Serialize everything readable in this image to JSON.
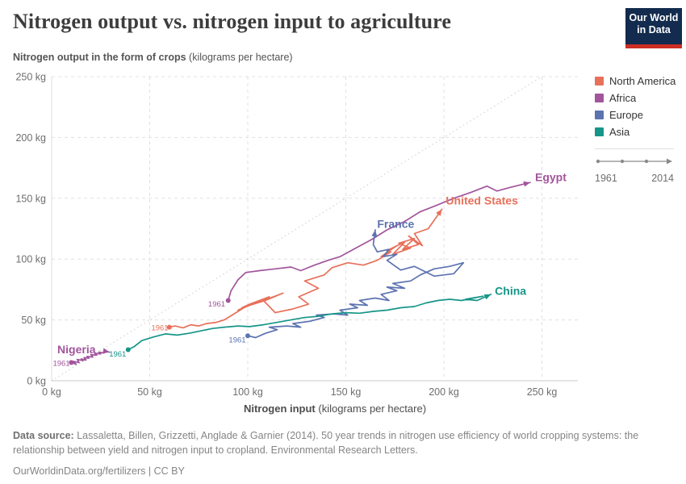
{
  "header": {
    "title": "Nitrogen output vs. nitrogen input to agriculture",
    "logo_line1": "Our World",
    "logo_line2": "in Data",
    "logo_bg": "#122B4E",
    "logo_accent": "#CD2D23"
  },
  "subtitle": {
    "bold": "Nitrogen output in the form of crops",
    "rest": " (kilograms per hectare)"
  },
  "legend": {
    "items": [
      {
        "label": "North America",
        "color": "#E8705A"
      },
      {
        "label": "Africa",
        "color": "#A2559C"
      },
      {
        "label": "Europe",
        "color": "#5C73B0"
      },
      {
        "label": "Asia",
        "color": "#169588"
      }
    ],
    "timeline": {
      "start_year": "1961",
      "end_year": "2014"
    }
  },
  "chart_data": {
    "type": "line",
    "variant": "connected-scatter",
    "title": "Nitrogen output vs. nitrogen input to agriculture",
    "xlabel_bold": "Nitrogen input",
    "xlabel_rest": " (kilograms per hectare)",
    "ylabel": "Nitrogen output in the form of crops (kilograms per hectare)",
    "xlim": [
      0,
      268
    ],
    "ylim": [
      0,
      250
    ],
    "grid": true,
    "x_ticks": [
      {
        "v": 0,
        "label": "0 kg"
      },
      {
        "v": 50,
        "label": "50 kg"
      },
      {
        "v": 100,
        "label": "100 kg"
      },
      {
        "v": 150,
        "label": "150 kg"
      },
      {
        "v": 200,
        "label": "200 kg"
      },
      {
        "v": 250,
        "label": "250 kg"
      }
    ],
    "y_ticks": [
      {
        "v": 0,
        "label": "0 kg"
      },
      {
        "v": 50,
        "label": "50 kg"
      },
      {
        "v": 100,
        "label": "100 kg"
      },
      {
        "v": 150,
        "label": "150 kg"
      },
      {
        "v": 200,
        "label": "200 kg"
      },
      {
        "v": 250,
        "label": "250 kg"
      }
    ],
    "diagonal_reference_line": {
      "from": [
        0,
        0
      ],
      "to": [
        250,
        250
      ]
    },
    "time_range": {
      "start": "1961",
      "end": "2014"
    },
    "series": [
      {
        "name": "Nigeria",
        "region": "Africa",
        "color": "#A2559C",
        "start_year": "1961",
        "end_year": "2014",
        "label_pos": [
          2.9,
          22.5
        ],
        "label_anchor": "start",
        "year_label_pos": [
          9.3,
          12.3
        ],
        "year_label_anchor": "end",
        "points": [
          [
            10,
            15
          ],
          [
            12.5,
            13.5
          ],
          [
            11,
            16
          ],
          [
            14,
            15
          ],
          [
            13,
            17.5
          ],
          [
            16,
            16.5
          ],
          [
            15,
            18
          ],
          [
            17.5,
            17
          ],
          [
            16.5,
            19
          ],
          [
            19,
            18.5
          ],
          [
            18,
            20
          ],
          [
            21,
            19.5
          ],
          [
            20,
            21.5
          ],
          [
            23,
            21
          ],
          [
            22,
            22.5
          ],
          [
            25,
            22
          ],
          [
            24,
            23.5
          ],
          [
            26.5,
            22.8
          ],
          [
            28,
            24
          ],
          [
            29.5,
            23.5
          ]
        ]
      },
      {
        "name": "Egypt",
        "region": "Africa",
        "color": "#A2559C",
        "start_year": "1961",
        "end_year": "2014",
        "label_pos": [
          246.5,
          164
        ],
        "label_anchor": "start",
        "year_label_pos": [
          88.5,
          61
        ],
        "year_label_anchor": "end",
        "points": [
          [
            90,
            66
          ],
          [
            91.5,
            74
          ],
          [
            95,
            83
          ],
          [
            99,
            89
          ],
          [
            106,
            90.5
          ],
          [
            114,
            92
          ],
          [
            122,
            93.5
          ],
          [
            127,
            90.5
          ],
          [
            134,
            95
          ],
          [
            141,
            99
          ],
          [
            147,
            102
          ],
          [
            155,
            109
          ],
          [
            163,
            116
          ],
          [
            171,
            124
          ],
          [
            180,
            131
          ],
          [
            188,
            139
          ],
          [
            196,
            144
          ],
          [
            205,
            150
          ],
          [
            214,
            155
          ],
          [
            222,
            160
          ],
          [
            227,
            156
          ],
          [
            234,
            159
          ],
          [
            244,
            163
          ]
        ]
      },
      {
        "name": "United States",
        "region": "North America",
        "color": "#E8705A",
        "start_year": "1961",
        "end_year": "2014",
        "label_pos": [
          201,
          145
        ],
        "label_anchor": "start",
        "year_label_pos": [
          59.5,
          41.5
        ],
        "year_label_anchor": "end",
        "points": [
          [
            60,
            44
          ],
          [
            63,
            45
          ],
          [
            67,
            43.5
          ],
          [
            71,
            46
          ],
          [
            75,
            45
          ],
          [
            79,
            47
          ],
          [
            84,
            48
          ],
          [
            88,
            50
          ],
          [
            93,
            55
          ],
          [
            99,
            61
          ],
          [
            95,
            58
          ],
          [
            104,
            64
          ],
          [
            111,
            69
          ],
          [
            101,
            63
          ],
          [
            97,
            60
          ],
          [
            109,
            66
          ],
          [
            118,
            72
          ],
          [
            108,
            66
          ],
          [
            114,
            56
          ],
          [
            123,
            59
          ],
          [
            131,
            63
          ],
          [
            126,
            69
          ],
          [
            136,
            76
          ],
          [
            129,
            82
          ],
          [
            139,
            87
          ],
          [
            143,
            93
          ],
          [
            151,
            97
          ],
          [
            159,
            95
          ],
          [
            166,
            99
          ],
          [
            173,
            106
          ],
          [
            168,
            102
          ],
          [
            176,
            111
          ],
          [
            171,
            107
          ],
          [
            180,
            114
          ],
          [
            174,
            104
          ],
          [
            183,
            109
          ],
          [
            177,
            113
          ],
          [
            185,
            117
          ],
          [
            179,
            108
          ],
          [
            187,
            112
          ],
          [
            182,
            119
          ],
          [
            189,
            111
          ],
          [
            185,
            121
          ],
          [
            192,
            125
          ],
          [
            199,
            141
          ]
        ]
      },
      {
        "name": "France",
        "region": "Europe",
        "color": "#5C73B0",
        "start_year": "1961",
        "end_year": "2014",
        "label_pos": [
          166,
          125.5
        ],
        "label_anchor": "start",
        "year_label_pos": [
          99,
          31.5
        ],
        "year_label_anchor": "end",
        "points": [
          [
            100,
            37
          ],
          [
            104,
            35.5
          ],
          [
            109,
            39
          ],
          [
            115,
            42
          ],
          [
            111,
            44
          ],
          [
            120,
            45
          ],
          [
            127,
            44
          ],
          [
            123,
            47
          ],
          [
            132,
            49
          ],
          [
            139,
            52
          ],
          [
            135,
            54
          ],
          [
            144,
            55
          ],
          [
            151,
            54
          ],
          [
            147,
            58
          ],
          [
            156,
            60
          ],
          [
            152,
            63
          ],
          [
            161,
            62
          ],
          [
            157,
            66
          ],
          [
            165,
            68
          ],
          [
            172,
            66
          ],
          [
            168,
            71
          ],
          [
            176,
            74
          ],
          [
            171,
            77
          ],
          [
            180,
            76
          ],
          [
            174,
            80
          ],
          [
            183,
            82
          ],
          [
            188,
            87
          ],
          [
            195,
            92
          ],
          [
            203,
            94
          ],
          [
            210,
            97
          ],
          [
            205,
            88
          ],
          [
            195,
            86
          ],
          [
            185,
            94
          ],
          [
            178,
            91
          ],
          [
            171,
            99
          ],
          [
            176,
            104
          ],
          [
            169,
            102
          ],
          [
            172,
            108
          ],
          [
            166,
            106
          ],
          [
            164,
            112
          ],
          [
            165,
            124
          ]
        ]
      },
      {
        "name": "China",
        "region": "Asia",
        "color": "#169588",
        "start_year": "1961",
        "end_year": "2014",
        "label_pos": [
          226,
          70.5
        ],
        "label_anchor": "start",
        "year_label_pos": [
          38,
          20
        ],
        "year_label_anchor": "end",
        "points": [
          [
            39,
            25.5
          ],
          [
            42,
            28
          ],
          [
            46,
            33
          ],
          [
            52,
            36
          ],
          [
            58,
            38.5
          ],
          [
            64,
            37.5
          ],
          [
            70,
            39
          ],
          [
            76,
            41
          ],
          [
            82,
            43
          ],
          [
            88,
            44
          ],
          [
            95,
            45
          ],
          [
            101,
            44.5
          ],
          [
            108,
            46
          ],
          [
            115,
            48
          ],
          [
            122,
            50
          ],
          [
            129,
            52
          ],
          [
            136,
            53
          ],
          [
            143,
            55
          ],
          [
            150,
            56
          ],
          [
            157,
            55.5
          ],
          [
            164,
            57
          ],
          [
            171,
            58
          ],
          [
            178,
            60
          ],
          [
            185,
            61
          ],
          [
            191,
            64
          ],
          [
            197,
            66
          ],
          [
            203,
            67
          ],
          [
            209,
            66
          ],
          [
            215,
            68
          ],
          [
            220,
            69.5
          ],
          [
            211,
            67
          ],
          [
            217,
            66
          ],
          [
            224,
            71
          ]
        ]
      }
    ]
  },
  "footer": {
    "source_label": "Data source:",
    "source_text": " Lassaletta, Billen, Grizzetti, Anglade & Garnier (2014). 50 year trends in nitrogen use efficiency of world cropping systems: the relationship between yield and nitrogen input to cropland. Environmental Research Letters.",
    "license_line": "OurWorldinData.org/fertilizers | CC BY"
  }
}
